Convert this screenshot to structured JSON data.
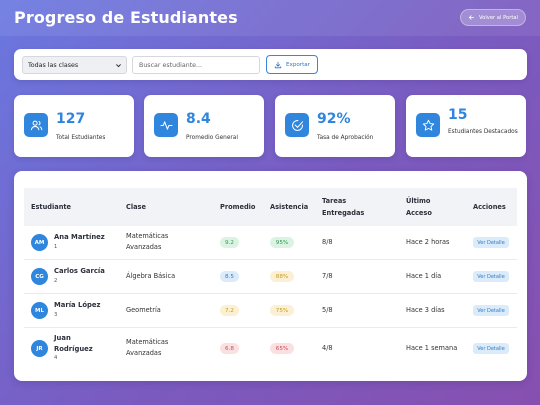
{
  "header": {
    "title": "Progreso de Estudiantes",
    "back_label": "Volver al Portal"
  },
  "filters": {
    "class_select_value": "Todas las clases",
    "search_placeholder": "Buscar estudiante...",
    "export_label": "Exportar"
  },
  "stats": [
    {
      "value": "127",
      "label": "Total Estudiantes",
      "icon": "users-icon"
    },
    {
      "value": "8.4",
      "label": "Promedio General",
      "icon": "activity-icon"
    },
    {
      "value": "92%",
      "label": "Tasa de Aprobación",
      "icon": "check-circle-icon"
    },
    {
      "value": "15",
      "label": "Estudiantes Destacados",
      "icon": "star-icon"
    }
  ],
  "table": {
    "headers": {
      "student": "Estudiante",
      "class": "Clase",
      "average": "Promedio",
      "attendance": "Asistencia",
      "tasks": "Tareas Entregadas",
      "last_access": "Último Acceso",
      "actions": "Acciones"
    },
    "rows": [
      {
        "initials": "AM",
        "name": "Ana Martínez",
        "id": "1",
        "class": "Matemáticas Avanzadas",
        "average": "9.2",
        "average_color": "green",
        "attendance": "95%",
        "attendance_color": "green",
        "tasks": "8/8",
        "last_access": "Hace 2 horas",
        "action": "Ver Detalle"
      },
      {
        "initials": "CG",
        "name": "Carlos García",
        "id": "2",
        "class": "Álgebra Básica",
        "average": "8.5",
        "average_color": "blue",
        "attendance": "88%",
        "attendance_color": "yellow",
        "tasks": "7/8",
        "last_access": "Hace 1 día",
        "action": "Ver Detalle"
      },
      {
        "initials": "ML",
        "name": "María López",
        "id": "3",
        "class": "Geometría",
        "average": "7.2",
        "average_color": "yellow",
        "attendance": "75%",
        "attendance_color": "yellow",
        "tasks": "5/8",
        "last_access": "Hace 3 días",
        "action": "Ver Detalle"
      },
      {
        "initials": "JR",
        "name": "Juan Rodríguez",
        "id": "4",
        "class": "Matemáticas Avanzadas",
        "average": "6.8",
        "average_color": "red",
        "attendance": "65%",
        "attendance_color": "red",
        "tasks": "4/8",
        "last_access": "Hace 1 semana",
        "action": "Ver Detalle"
      }
    ]
  },
  "colors": {
    "accent": "#2f86dc",
    "background_start": "#6a78e0",
    "background_end": "#8750b0"
  }
}
